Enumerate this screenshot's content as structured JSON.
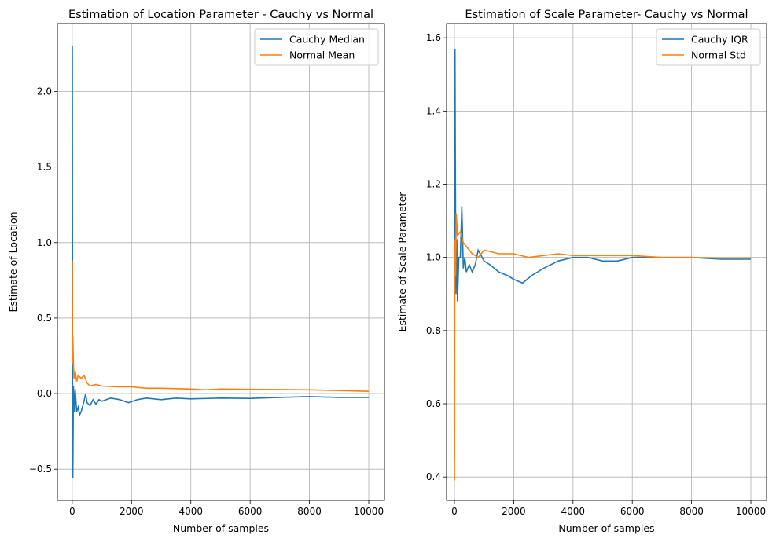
{
  "chart_data": [
    {
      "type": "line",
      "title": "Estimation of Location Parameter - Cauchy vs Normal",
      "xlabel": "Number of samples",
      "ylabel": "Estimate of Location",
      "xlim": [
        -500,
        10530
      ],
      "ylim": [
        -0.707,
        2.45
      ],
      "xticks": [
        0,
        2000,
        4000,
        6000,
        8000,
        10000
      ],
      "yticks": [
        -0.5,
        0.0,
        0.5,
        1.0,
        1.5,
        2.0
      ],
      "ytick_labels": [
        "−0.5",
        "0.0",
        "0.5",
        "1.0",
        "1.5",
        "2.0"
      ],
      "grid": true,
      "legend": "top-right",
      "series": [
        {
          "name": "Cauchy Median",
          "color": "#1f77b4",
          "x": [
            1,
            3,
            5,
            8,
            12,
            20,
            40,
            60,
            100,
            150,
            200,
            250,
            300,
            400,
            450,
            500,
            600,
            700,
            800,
            900,
            1000,
            1300,
            1600,
            1900,
            2200,
            2500,
            3000,
            3500,
            4000,
            5000,
            6000,
            7000,
            8000,
            9000,
            10000
          ],
          "y": [
            1.28,
            1.85,
            2.3,
            0.9,
            0.05,
            -0.56,
            0.05,
            -0.12,
            0.03,
            -0.12,
            -0.09,
            -0.14,
            -0.12,
            -0.05,
            0.0,
            -0.06,
            -0.08,
            -0.04,
            -0.07,
            -0.04,
            -0.05,
            -0.03,
            -0.04,
            -0.06,
            -0.04,
            -0.03,
            -0.04,
            -0.03,
            -0.035,
            -0.03,
            -0.032,
            -0.025,
            -0.02,
            -0.025,
            -0.025
          ]
        },
        {
          "name": "Normal Mean",
          "color": "#ff7f0e",
          "x": [
            1,
            3,
            6,
            10,
            20,
            40,
            60,
            100,
            150,
            200,
            300,
            400,
            500,
            600,
            800,
            1000,
            1500,
            2000,
            2500,
            3000,
            4000,
            4500,
            5000,
            6000,
            7000,
            8000,
            9000,
            10000
          ],
          "y": [
            0.55,
            0.88,
            0.5,
            0.2,
            0.38,
            0.2,
            0.1,
            0.15,
            0.08,
            0.12,
            0.1,
            0.12,
            0.07,
            0.05,
            0.06,
            0.05,
            0.045,
            0.045,
            0.035,
            0.035,
            0.03,
            0.025,
            0.03,
            0.028,
            0.027,
            0.025,
            0.02,
            0.015
          ]
        }
      ]
    },
    {
      "type": "line",
      "title": "Estimation of Scale Parameter- Cauchy vs Normal",
      "xlabel": "Number of samples",
      "ylabel": "Estimate of Scale Parameter",
      "xlim": [
        -265,
        10530
      ],
      "ylim": [
        0.336,
        1.639
      ],
      "xticks": [
        0,
        2000,
        4000,
        6000,
        8000,
        10000
      ],
      "yticks": [
        0.4,
        0.6,
        0.8,
        1.0,
        1.2,
        1.4,
        1.6
      ],
      "ytick_labels": [
        "0.4",
        "0.6",
        "0.8",
        "1.0",
        "1.2",
        "1.4",
        "1.6"
      ],
      "grid": true,
      "legend": "top-right",
      "series": [
        {
          "name": "Cauchy IQR",
          "color": "#1f77b4",
          "x": [
            1,
            5,
            10,
            20,
            30,
            50,
            80,
            100,
            150,
            200,
            250,
            300,
            350,
            400,
            500,
            600,
            700,
            800,
            1000,
            1200,
            1500,
            1800,
            2000,
            2300,
            2600,
            3000,
            3500,
            4000,
            4500,
            5000,
            5500,
            6000,
            7000,
            8000,
            9000,
            10000
          ],
          "y": [
            0.45,
            0.9,
            1.35,
            1.57,
            1.3,
            0.9,
            1.05,
            0.88,
            1.0,
            1.0,
            1.14,
            0.97,
            1.0,
            0.96,
            0.98,
            0.96,
            0.98,
            1.02,
            0.99,
            0.98,
            0.96,
            0.95,
            0.94,
            0.93,
            0.95,
            0.97,
            0.99,
            1.0,
            1.0,
            0.99,
            0.99,
            1.0,
            1.0,
            1.0,
            0.995,
            0.995
          ]
        },
        {
          "name": "Normal Std",
          "color": "#ff7f0e",
          "x": [
            1,
            5,
            10,
            20,
            40,
            60,
            100,
            200,
            300,
            400,
            600,
            800,
            1000,
            1500,
            2000,
            2500,
            3000,
            3500,
            4000,
            5000,
            6000,
            7000,
            8000,
            9000,
            10000
          ],
          "y": [
            0.39,
            0.6,
            0.9,
            1.05,
            0.95,
            1.12,
            1.06,
            1.07,
            1.04,
            1.03,
            1.01,
            1.0,
            1.02,
            1.01,
            1.01,
            1.0,
            1.005,
            1.01,
            1.005,
            1.005,
            1.005,
            1.0,
            1.0,
            0.998,
            0.998
          ]
        }
      ]
    }
  ]
}
